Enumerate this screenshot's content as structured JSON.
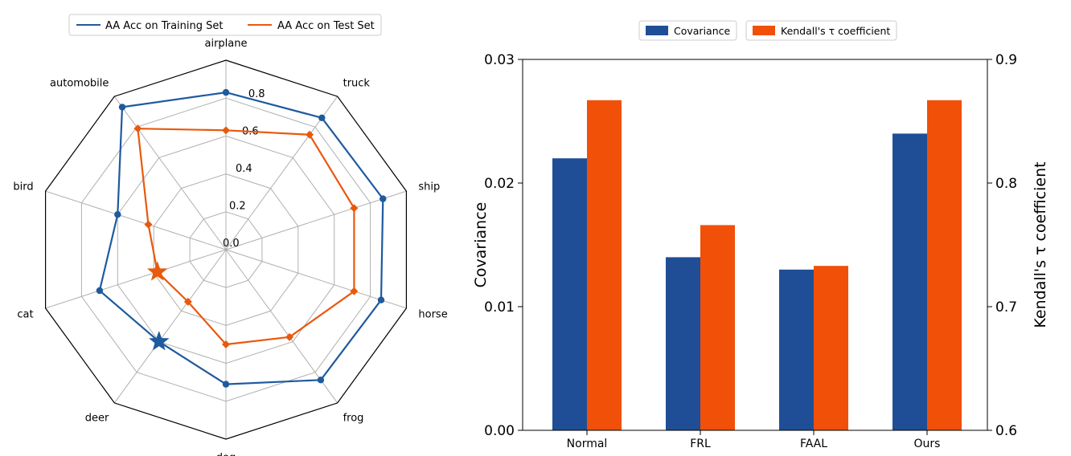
{
  "chart_data": [
    {
      "type": "radar",
      "categories": [
        "airplane",
        "truck",
        "ship",
        "horse",
        "frog",
        "dog",
        "deer",
        "cat",
        "bird",
        "automobile"
      ],
      "radial_ticks": [
        "0.0",
        "0.2",
        "0.4",
        "0.6",
        "0.8"
      ],
      "rlim": [
        0,
        1.0
      ],
      "series": [
        {
          "name": "AA Acc on Training Set",
          "color": "#1f5a9e",
          "values": [
            0.83,
            0.86,
            0.87,
            0.86,
            0.85,
            0.71,
            0.6,
            0.7,
            0.6,
            0.93
          ],
          "star_index": 6
        },
        {
          "name": "AA Acc on Test Set",
          "color": "#e8590c",
          "values": [
            0.63,
            0.75,
            0.71,
            0.71,
            0.57,
            0.5,
            0.34,
            0.38,
            0.43,
            0.79
          ],
          "star_index": 7
        }
      ]
    },
    {
      "type": "bar",
      "categories": [
        "Normal",
        "FRL",
        "FAAL",
        "Ours"
      ],
      "series": [
        {
          "name": "Covariance",
          "axis": "left",
          "color": "#1f4e96",
          "values": [
            0.022,
            0.014,
            0.013,
            0.024
          ]
        },
        {
          "name": "Kendall's τ coefficient",
          "axis": "right",
          "color": "#f05008",
          "values": [
            0.867,
            0.766,
            0.733,
            0.867
          ]
        }
      ],
      "ylabel": "Covariance",
      "ylim": [
        0,
        0.03
      ],
      "yticks": [
        "0.00",
        "0.01",
        "0.02",
        "0.03"
      ],
      "y2label": "Kendall's τ coefficient",
      "y2lim": [
        0.6,
        0.9
      ],
      "y2ticks": [
        "0.6",
        "0.7",
        "0.8",
        "0.9"
      ],
      "legend_position": "top-center"
    }
  ]
}
